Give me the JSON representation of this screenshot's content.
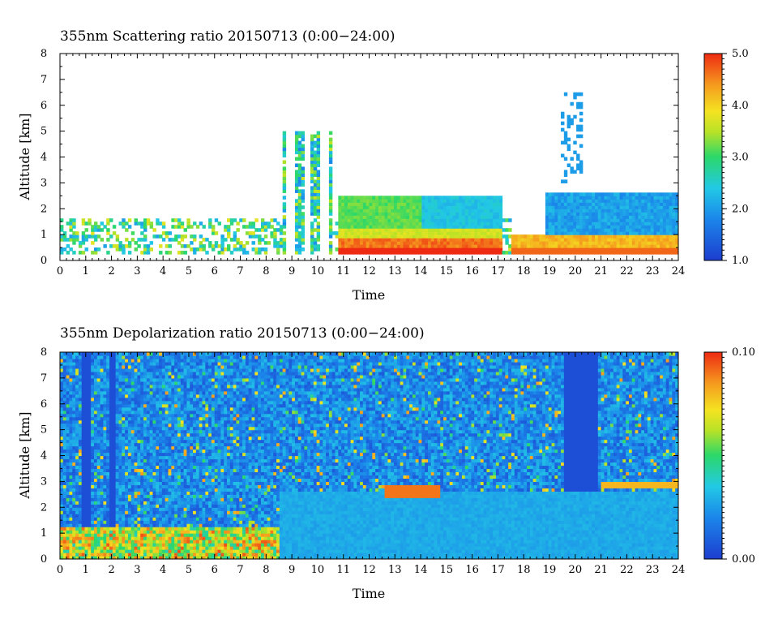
{
  "chart_data": [
    {
      "type": "heatmap",
      "title": "355nm Scattering ratio  20150713 (0:00−24:00)",
      "xlabel": "Time",
      "ylabel": "Altitude [km]",
      "xlim": [
        0,
        24
      ],
      "ylim": [
        0,
        8
      ],
      "x_ticks": [
        "0",
        "1",
        "2",
        "3",
        "4",
        "5",
        "6",
        "7",
        "8",
        "9",
        "10",
        "11",
        "12",
        "13",
        "14",
        "15",
        "16",
        "17",
        "18",
        "19",
        "20",
        "21",
        "22",
        "23",
        "24"
      ],
      "y_ticks": [
        "0",
        "1",
        "2",
        "3",
        "4",
        "5",
        "6",
        "7",
        "8"
      ],
      "colorbar": {
        "min": 1.0,
        "max": 5.0,
        "ticks": [
          "1.0",
          "2.0",
          "3.0",
          "4.0",
          "5.0"
        ]
      },
      "features": [
        {
          "t0": 0.0,
          "t1": 8.0,
          "z0": 0.3,
          "z1": 1.8,
          "value": 2.5,
          "note": "boundary layer patches"
        },
        {
          "t0": 8.5,
          "t1": 10.5,
          "z0": 0.5,
          "z1": 5.5,
          "value": 2.5,
          "note": "vertical cloud columns"
        },
        {
          "t0": 10.8,
          "t1": 17.2,
          "z0": 0.3,
          "z1": 0.9,
          "value": 4.5,
          "note": "dense aerosol layer"
        },
        {
          "t0": 10.8,
          "t1": 17.2,
          "z0": 0.9,
          "z1": 2.6,
          "value": 2.6,
          "note": "aerosol layer"
        },
        {
          "t0": 18.9,
          "t1": 24.0,
          "z0": 0.3,
          "z1": 2.7,
          "value": 2.0,
          "note": "aerosol layer"
        },
        {
          "t0": 17.5,
          "t1": 24.0,
          "z0": 0.3,
          "z1": 1.0,
          "value": 4.5,
          "note": "dense aerosol layer"
        }
      ]
    },
    {
      "type": "heatmap",
      "title": "355nm Depolarization ratio  20150713 (0:00−24:00)",
      "xlabel": "Time",
      "ylabel": "Altitude [km]",
      "xlim": [
        0,
        24
      ],
      "ylim": [
        0,
        8
      ],
      "x_ticks": [
        "0",
        "1",
        "2",
        "3",
        "4",
        "5",
        "6",
        "7",
        "8",
        "9",
        "10",
        "11",
        "12",
        "13",
        "14",
        "15",
        "16",
        "17",
        "18",
        "19",
        "20",
        "21",
        "22",
        "23",
        "24"
      ],
      "y_ticks": [
        "0",
        "1",
        "2",
        "3",
        "4",
        "5",
        "6",
        "7",
        "8"
      ],
      "colorbar": {
        "min": 0.0,
        "max": 0.1,
        "ticks": [
          "0.00",
          "0.10"
        ]
      },
      "features": [
        {
          "t0": 0.0,
          "t1": 8.5,
          "z0": 0.0,
          "z1": 1.3,
          "value": 0.05,
          "note": "boundary layer"
        },
        {
          "t0": 8.5,
          "t1": 24.0,
          "z0": 0.0,
          "z1": 2.6,
          "value": 0.02,
          "note": "aerosol layer"
        },
        {
          "t0": 12.6,
          "t1": 14.8,
          "z0": 2.4,
          "z1": 2.8,
          "value": 0.09,
          "note": "layer top"
        },
        {
          "t0": 21.0,
          "t1": 24.0,
          "z0": 2.7,
          "z1": 3.0,
          "value": 0.07,
          "note": "layer top"
        }
      ]
    }
  ]
}
